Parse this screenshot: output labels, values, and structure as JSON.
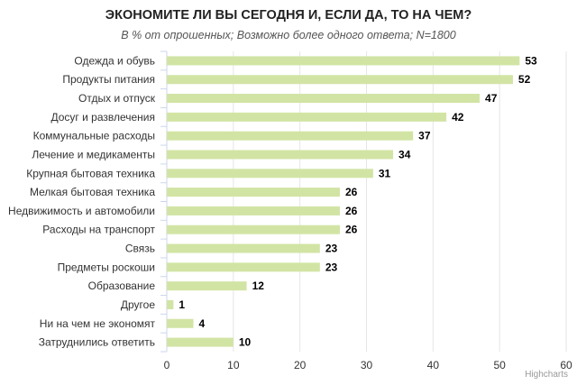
{
  "chart_data": {
    "type": "bar",
    "orientation": "horizontal",
    "title": "ЭКОНОМИТЕ ЛИ ВЫ СЕГОДНЯ И, ЕСЛИ ДА, ТО НА ЧЕМ?",
    "subtitle": "В % от опрошенных; Возможно более одного ответа; N=1800",
    "categories": [
      "Одежда и обувь",
      "Продукты питания",
      "Отдых и отпуск",
      "Досуг и развлечения",
      "Коммунальные расходы",
      "Лечение и медикаменты",
      "Крупная бытовая техника",
      "Мелкая бытовая техника",
      "Недвижимость и автомобили",
      "Расходы на транспорт",
      "Связь",
      "Предметы роскоши",
      "Образование",
      "Другое",
      "Ни на чем не экономят",
      "Затруднились ответить"
    ],
    "values": [
      53,
      52,
      47,
      42,
      37,
      34,
      31,
      26,
      26,
      26,
      23,
      23,
      12,
      1,
      4,
      10
    ],
    "xlim": [
      0,
      60
    ],
    "xticks": [
      "0",
      "10",
      "20",
      "30",
      "40",
      "50",
      "60"
    ],
    "grid": true,
    "bar_color": "#d2e4a4",
    "credits": "Highcharts"
  }
}
